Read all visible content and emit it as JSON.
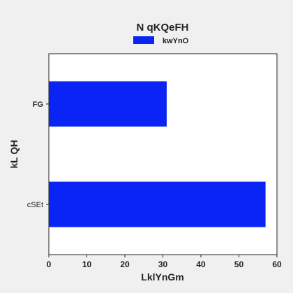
{
  "chart_data": {
    "type": "bar",
    "orientation": "horizontal",
    "title": "N qKQeFH",
    "xlabel": "LklYnGm",
    "ylabel": "kL QH",
    "categories": [
      "FG",
      "cSEt"
    ],
    "series": [
      {
        "name": "kwYnO",
        "color": "#0a24f5",
        "values": [
          31,
          57
        ]
      }
    ],
    "xlim": [
      0,
      60
    ],
    "xticks": [
      0,
      10,
      20,
      30,
      40,
      50,
      60
    ],
    "grid": false,
    "legend_position": "top-center"
  }
}
